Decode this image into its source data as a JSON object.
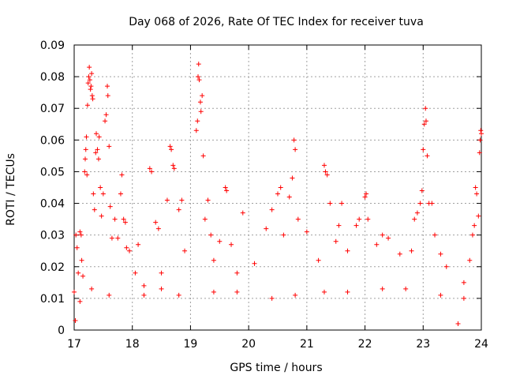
{
  "chart_data": {
    "type": "scatter",
    "title": "Day 068 of 2026, Rate Of TEC Index for receiver tuva",
    "xlabel": "GPS time / hours",
    "ylabel": "ROTI / TECUs",
    "xlim": [
      17,
      24
    ],
    "ylim": [
      0,
      0.09
    ],
    "xticks": [
      "17",
      "18",
      "19",
      "20",
      "21",
      "22",
      "23",
      "24"
    ],
    "yticks": [
      "0",
      "0.01",
      "0.02",
      "0.03",
      "0.04",
      "0.05",
      "0.06",
      "0.07",
      "0.08",
      "0.09"
    ],
    "grid": true,
    "marker": "+",
    "colors": {
      "series": "#ff0000",
      "grid": "#a0a0a0",
      "axis": "#000000"
    },
    "series": [
      {
        "points": [
          [
            17.02,
            0.003
          ],
          [
            17.03,
            0.03
          ],
          [
            17.05,
            0.026
          ],
          [
            17.07,
            0.018
          ],
          [
            17.1,
            0.031
          ],
          [
            17.12,
            0.03
          ],
          [
            17.13,
            0.022
          ],
          [
            17.15,
            0.017
          ],
          [
            17.18,
            0.05
          ],
          [
            17.19,
            0.054
          ],
          [
            17.2,
            0.057
          ],
          [
            17.21,
            0.061
          ],
          [
            17.22,
            0.049
          ],
          [
            17.23,
            0.071
          ],
          [
            17.24,
            0.078
          ],
          [
            17.25,
            0.08
          ],
          [
            17.26,
            0.083
          ],
          [
            17.27,
            0.079
          ],
          [
            17.28,
            0.076
          ],
          [
            17.29,
            0.077
          ],
          [
            17.3,
            0.081
          ],
          [
            17.31,
            0.074
          ],
          [
            17.32,
            0.073
          ],
          [
            17.33,
            0.043
          ],
          [
            17.35,
            0.038
          ],
          [
            17.37,
            0.056
          ],
          [
            17.38,
            0.062
          ],
          [
            17.4,
            0.057
          ],
          [
            17.42,
            0.054
          ],
          [
            17.43,
            0.061
          ],
          [
            17.45,
            0.045
          ],
          [
            17.47,
            0.036
          ],
          [
            17.5,
            0.043
          ],
          [
            17.53,
            0.066
          ],
          [
            17.55,
            0.068
          ],
          [
            17.57,
            0.077
          ],
          [
            17.58,
            0.074
          ],
          [
            17.6,
            0.058
          ],
          [
            17.62,
            0.039
          ],
          [
            17.65,
            0.029
          ],
          [
            17.7,
            0.035
          ],
          [
            17.75,
            0.029
          ],
          [
            17.8,
            0.043
          ],
          [
            17.82,
            0.049
          ],
          [
            17.85,
            0.035
          ],
          [
            17.88,
            0.034
          ],
          [
            17.9,
            0.026
          ],
          [
            17.95,
            0.025
          ],
          [
            18.05,
            0.018
          ],
          [
            18.1,
            0.027
          ],
          [
            18.2,
            0.014
          ],
          [
            18.3,
            0.051
          ],
          [
            18.33,
            0.05
          ],
          [
            18.4,
            0.034
          ],
          [
            18.45,
            0.032
          ],
          [
            18.5,
            0.018
          ],
          [
            18.6,
            0.041
          ],
          [
            18.65,
            0.058
          ],
          [
            18.67,
            0.057
          ],
          [
            18.7,
            0.052
          ],
          [
            18.72,
            0.051
          ],
          [
            18.8,
            0.038
          ],
          [
            18.85,
            0.041
          ],
          [
            18.9,
            0.025
          ],
          [
            19.1,
            0.063
          ],
          [
            19.12,
            0.066
          ],
          [
            19.13,
            0.08
          ],
          [
            19.14,
            0.084
          ],
          [
            19.15,
            0.079
          ],
          [
            19.17,
            0.072
          ],
          [
            19.18,
            0.069
          ],
          [
            19.2,
            0.074
          ],
          [
            19.22,
            0.055
          ],
          [
            19.25,
            0.035
          ],
          [
            19.3,
            0.041
          ],
          [
            19.35,
            0.03
          ],
          [
            19.4,
            0.022
          ],
          [
            19.5,
            0.028
          ],
          [
            19.6,
            0.045
          ],
          [
            19.62,
            0.044
          ],
          [
            19.7,
            0.027
          ],
          [
            19.8,
            0.018
          ],
          [
            19.9,
            0.037
          ],
          [
            20.1,
            0.021
          ],
          [
            20.3,
            0.032
          ],
          [
            20.4,
            0.038
          ],
          [
            20.5,
            0.043
          ],
          [
            20.55,
            0.045
          ],
          [
            20.6,
            0.03
          ],
          [
            20.7,
            0.042
          ],
          [
            20.75,
            0.048
          ],
          [
            20.78,
            0.06
          ],
          [
            20.8,
            0.057
          ],
          [
            20.85,
            0.035
          ],
          [
            21.0,
            0.031
          ],
          [
            21.2,
            0.022
          ],
          [
            21.3,
            0.052
          ],
          [
            21.32,
            0.05
          ],
          [
            21.35,
            0.049
          ],
          [
            21.4,
            0.04
          ],
          [
            21.5,
            0.028
          ],
          [
            21.55,
            0.033
          ],
          [
            21.6,
            0.04
          ],
          [
            21.7,
            0.025
          ],
          [
            21.85,
            0.033
          ],
          [
            21.9,
            0.035
          ],
          [
            22.0,
            0.042
          ],
          [
            22.02,
            0.043
          ],
          [
            22.05,
            0.035
          ],
          [
            22.2,
            0.027
          ],
          [
            22.3,
            0.03
          ],
          [
            22.4,
            0.029
          ],
          [
            22.6,
            0.024
          ],
          [
            22.8,
            0.025
          ],
          [
            22.85,
            0.035
          ],
          [
            22.9,
            0.037
          ],
          [
            22.95,
            0.04
          ],
          [
            22.98,
            0.044
          ],
          [
            23.0,
            0.057
          ],
          [
            23.02,
            0.065
          ],
          [
            23.04,
            0.07
          ],
          [
            23.05,
            0.066
          ],
          [
            23.07,
            0.055
          ],
          [
            23.1,
            0.04
          ],
          [
            23.15,
            0.04
          ],
          [
            23.2,
            0.03
          ],
          [
            23.3,
            0.024
          ],
          [
            23.4,
            0.02
          ],
          [
            23.6,
            0.002
          ],
          [
            23.7,
            0.015
          ],
          [
            23.8,
            0.022
          ],
          [
            23.85,
            0.03
          ],
          [
            23.88,
            0.033
          ],
          [
            23.9,
            0.045
          ],
          [
            23.92,
            0.043
          ],
          [
            23.95,
            0.036
          ],
          [
            23.97,
            0.056
          ],
          [
            23.98,
            0.06
          ],
          [
            23.99,
            0.063
          ],
          [
            24.0,
            0.062
          ],
          [
            17.0,
            0.012
          ],
          [
            17.1,
            0.009
          ],
          [
            17.3,
            0.013
          ],
          [
            17.6,
            0.011
          ],
          [
            18.2,
            0.011
          ],
          [
            18.5,
            0.013
          ],
          [
            18.8,
            0.011
          ],
          [
            19.4,
            0.012
          ],
          [
            19.8,
            0.012
          ],
          [
            20.4,
            0.01
          ],
          [
            20.8,
            0.011
          ],
          [
            21.3,
            0.012
          ],
          [
            21.7,
            0.012
          ],
          [
            22.3,
            0.013
          ],
          [
            22.7,
            0.013
          ],
          [
            23.3,
            0.011
          ],
          [
            23.7,
            0.01
          ]
        ]
      }
    ]
  }
}
